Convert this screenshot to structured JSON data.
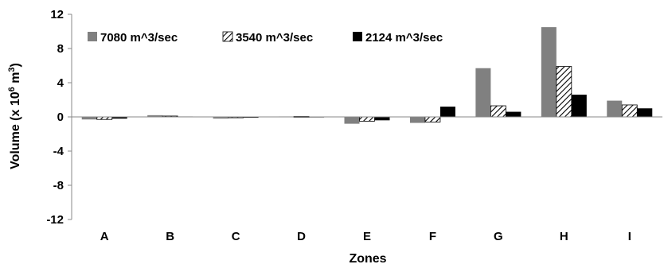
{
  "chart_data": {
    "type": "bar",
    "categories": [
      "A",
      "B",
      "C",
      "D",
      "E",
      "F",
      "G",
      "H",
      "I"
    ],
    "series": [
      {
        "name": "7080 m^3/sec",
        "values": [
          -0.3,
          0.2,
          -0.2,
          0.05,
          -0.8,
          -0.7,
          5.7,
          10.5,
          1.9
        ],
        "fill": "#808080",
        "pattern": "solid"
      },
      {
        "name": "3540 m^3/sec",
        "values": [
          -0.3,
          0.1,
          -0.1,
          0.05,
          -0.5,
          -0.6,
          1.3,
          5.9,
          1.4
        ],
        "fill": "#ffffff",
        "pattern": "hatch"
      },
      {
        "name": "2124 m^3/sec",
        "values": [
          -0.2,
          0.05,
          -0.1,
          0.03,
          -0.4,
          1.2,
          0.6,
          2.6,
          1.0
        ],
        "fill": "#000000",
        "pattern": "solid"
      }
    ],
    "ylim": [
      -12,
      12
    ],
    "yticks": [
      "-12",
      "-8",
      "-4",
      "0",
      "4",
      "8",
      "12"
    ],
    "ylabel_parts": {
      "main": "Volume (x 10",
      "exp": "6",
      "tail": " m",
      "exp2": "3",
      "close": ")"
    },
    "xlabel": "Zones",
    "legend_position": "top-left",
    "grid": false
  }
}
